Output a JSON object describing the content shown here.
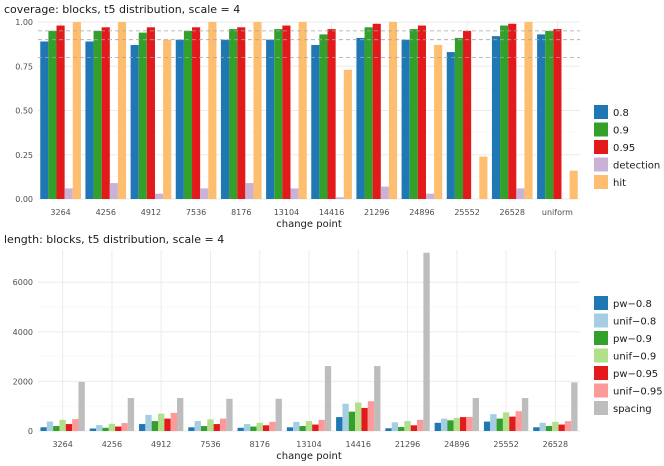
{
  "colors": {
    "panel_bg": "#ffffff",
    "grid_major": "#ebebeb",
    "grid_minor": "#f5f5f5",
    "text": "#1a1a1a",
    "tick_text": "#4d4d4d",
    "refline": "#a6a6a6"
  },
  "chart_data": [
    {
      "type": "bar",
      "title": "coverage: blocks, t5 distribution, scale = 4",
      "xlabel": "change point",
      "ylabel": "",
      "ylim": [
        0,
        1.0
      ],
      "yticks": [
        0.0,
        0.25,
        0.5,
        0.75,
        1.0
      ],
      "ytick_labels": [
        "0.00",
        "0.25",
        "0.50",
        "0.75",
        "1.00"
      ],
      "grid": true,
      "legend_position": "right",
      "reference_lines": [
        0.8,
        0.9,
        0.95
      ],
      "categories": [
        "3264",
        "4256",
        "4912",
        "7536",
        "8176",
        "13104",
        "14416",
        "21296",
        "24896",
        "25552",
        "26528",
        "uniform"
      ],
      "series": [
        {
          "name": "0.8",
          "color": "#1f78b4",
          "values": [
            0.89,
            0.89,
            0.87,
            0.9,
            0.9,
            0.9,
            0.87,
            0.91,
            0.9,
            0.83,
            0.92,
            0.93
          ]
        },
        {
          "name": "0.9",
          "color": "#33a02c",
          "values": [
            0.95,
            0.95,
            0.94,
            0.95,
            0.96,
            0.96,
            0.93,
            0.97,
            0.96,
            0.91,
            0.98,
            0.95
          ]
        },
        {
          "name": "0.95",
          "color": "#e31a1c",
          "values": [
            0.98,
            0.97,
            0.97,
            0.97,
            0.97,
            0.98,
            0.96,
            0.99,
            0.98,
            0.95,
            0.99,
            0.96
          ]
        },
        {
          "name": "detection",
          "color": "#cab2d6",
          "values": [
            0.06,
            0.09,
            0.03,
            0.06,
            0.09,
            0.06,
            0.01,
            0.07,
            0.03,
            0.0,
            0.06,
            null
          ]
        },
        {
          "name": "hit",
          "color": "#fdbf6f",
          "values": [
            1.0,
            1.0,
            0.9,
            1.0,
            1.0,
            1.0,
            0.73,
            1.0,
            0.87,
            0.24,
            1.0,
            0.16
          ]
        }
      ]
    },
    {
      "type": "bar",
      "title": "length: blocks, t5 distribution, scale = 4",
      "xlabel": "change point",
      "ylabel": "",
      "ylim": [
        0,
        7300
      ],
      "yticks": [
        0,
        2000,
        4000,
        6000
      ],
      "ytick_labels": [
        "0",
        "2000",
        "4000",
        "6000"
      ],
      "grid": true,
      "legend_position": "right",
      "categories": [
        "3264",
        "4256",
        "4912",
        "7536",
        "8176",
        "13104",
        "14416",
        "21296",
        "24896",
        "25552",
        "26528"
      ],
      "series": [
        {
          "name": "pw−0.8",
          "color": "#1f78b4",
          "values": [
            150,
            100,
            280,
            150,
            130,
            150,
            560,
            110,
            330,
            380,
            150
          ]
        },
        {
          "name": "unif−0.8",
          "color": "#a6cee3",
          "values": [
            380,
            240,
            650,
            400,
            280,
            370,
            1100,
            350,
            500,
            680,
            330
          ]
        },
        {
          "name": "pw−0.9",
          "color": "#33a02c",
          "values": [
            200,
            130,
            400,
            200,
            180,
            200,
            780,
            160,
            430,
            500,
            200
          ]
        },
        {
          "name": "unif−0.9",
          "color": "#b2df8a",
          "values": [
            450,
            290,
            700,
            470,
            330,
            400,
            1150,
            400,
            530,
            750,
            370
          ]
        },
        {
          "name": "pw−0.95",
          "color": "#e31a1c",
          "values": [
            280,
            180,
            500,
            280,
            230,
            260,
            930,
            230,
            560,
            580,
            260
          ]
        },
        {
          "name": "unif−0.95",
          "color": "#fb9a99",
          "values": [
            480,
            320,
            730,
            500,
            370,
            450,
            1200,
            450,
            570,
            800,
            400
          ]
        },
        {
          "name": "spacing",
          "color": "#bdbdbd",
          "values": [
            1980,
            1330,
            1330,
            1300,
            1300,
            2620,
            2620,
            7190,
            1330,
            1330,
            1960
          ]
        }
      ]
    }
  ]
}
